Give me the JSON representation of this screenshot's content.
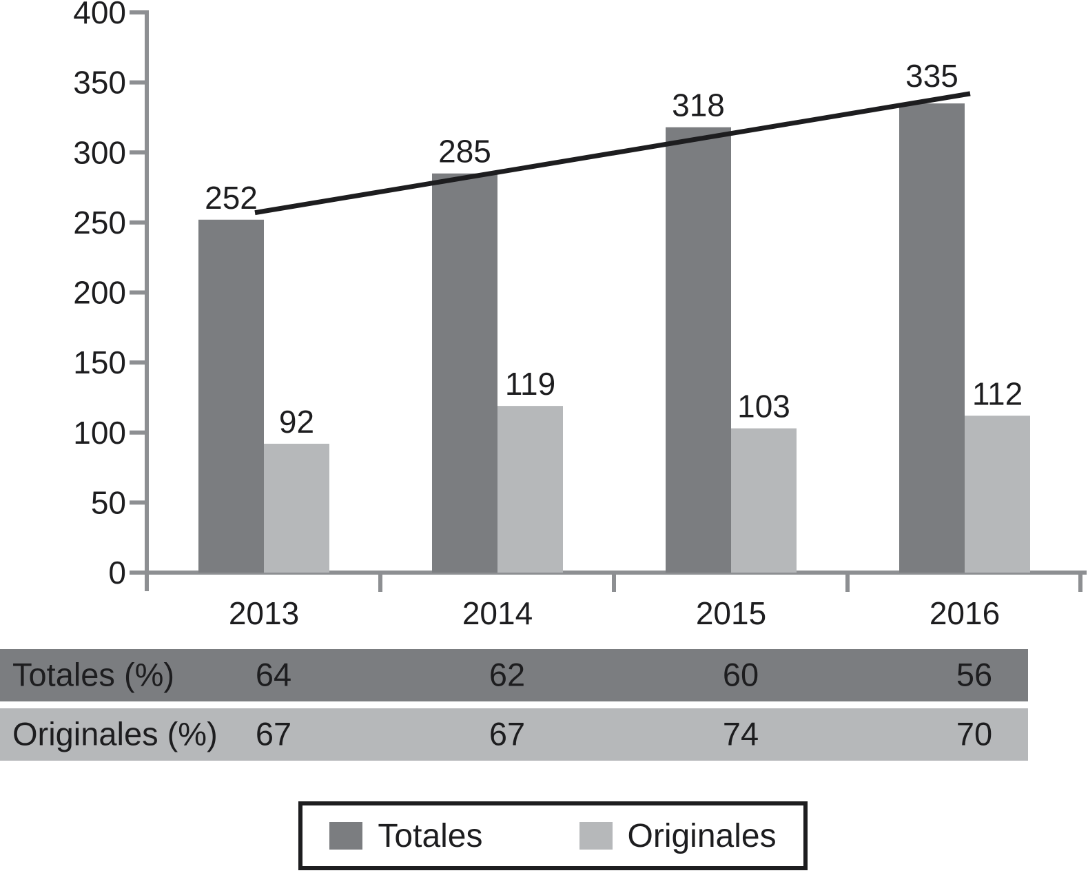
{
  "chart_data": {
    "type": "bar",
    "categories": [
      "2013",
      "2014",
      "2015",
      "2016"
    ],
    "series": [
      {
        "name": "Totales",
        "color": "#7b7d80",
        "values": [
          252,
          285,
          318,
          335
        ]
      },
      {
        "name": "Originales",
        "color": "#b6b8ba",
        "values": [
          92,
          119,
          103,
          112
        ]
      }
    ],
    "trend_line": {
      "series": "Totales",
      "color": "#1d1d1f",
      "from_value": 257,
      "to_value": 342
    },
    "title": "",
    "xlabel": "",
    "ylabel": "",
    "ylim": [
      0,
      400
    ],
    "yticks": [
      0,
      50,
      100,
      150,
      200,
      250,
      300,
      350,
      400
    ],
    "grid": false,
    "legend_position": "bottom",
    "axis_color": "#8d8f92",
    "text_color": "#1d1d1f"
  },
  "table": {
    "rows": [
      {
        "label": "Totales (%)",
        "values": [
          64,
          62,
          60,
          56
        ],
        "bg": "#7b7d80"
      },
      {
        "label": "Originales (%)",
        "values": [
          67,
          67,
          74,
          70
        ],
        "bg": "#b6b8ba"
      }
    ]
  },
  "legend": {
    "items": [
      {
        "label": "Totales",
        "color": "#7b7d80"
      },
      {
        "label": "Originales",
        "color": "#b6b8ba"
      }
    ]
  }
}
